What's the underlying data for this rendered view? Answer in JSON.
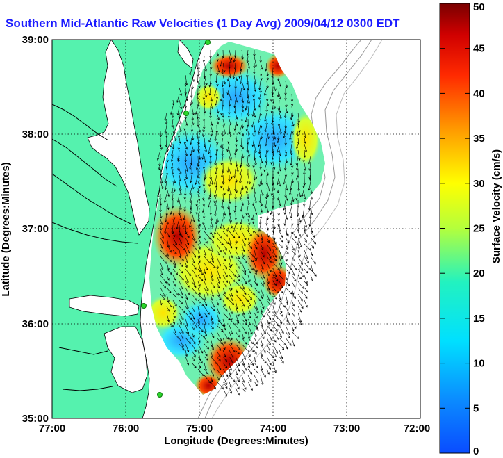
{
  "title": "Southern Mid-Atlantic Raw Velocities (1 Day Avg) 2009/04/12 0300 EDT",
  "axes": {
    "xlabel": "Longitude (Degrees:Minutes)",
    "ylabel": "Latitude (Degrees:Minutes)",
    "xticks": [
      "77:00",
      "76:00",
      "75:00",
      "74:00",
      "73:00",
      "72:00"
    ],
    "yticks": [
      "39:00",
      "38:00",
      "37:00",
      "36:00",
      "35:00"
    ]
  },
  "colorbar": {
    "label": "Surface Velocity (cm/s)",
    "ticks": [
      "50",
      "45",
      "40",
      "35",
      "30",
      "25",
      "20",
      "15",
      "10",
      "5",
      "0"
    ],
    "min": 0,
    "max": 50
  },
  "colors": {
    "land": "#55f2ae",
    "title": "#1a1aff",
    "station": "#2bd62b"
  }
}
